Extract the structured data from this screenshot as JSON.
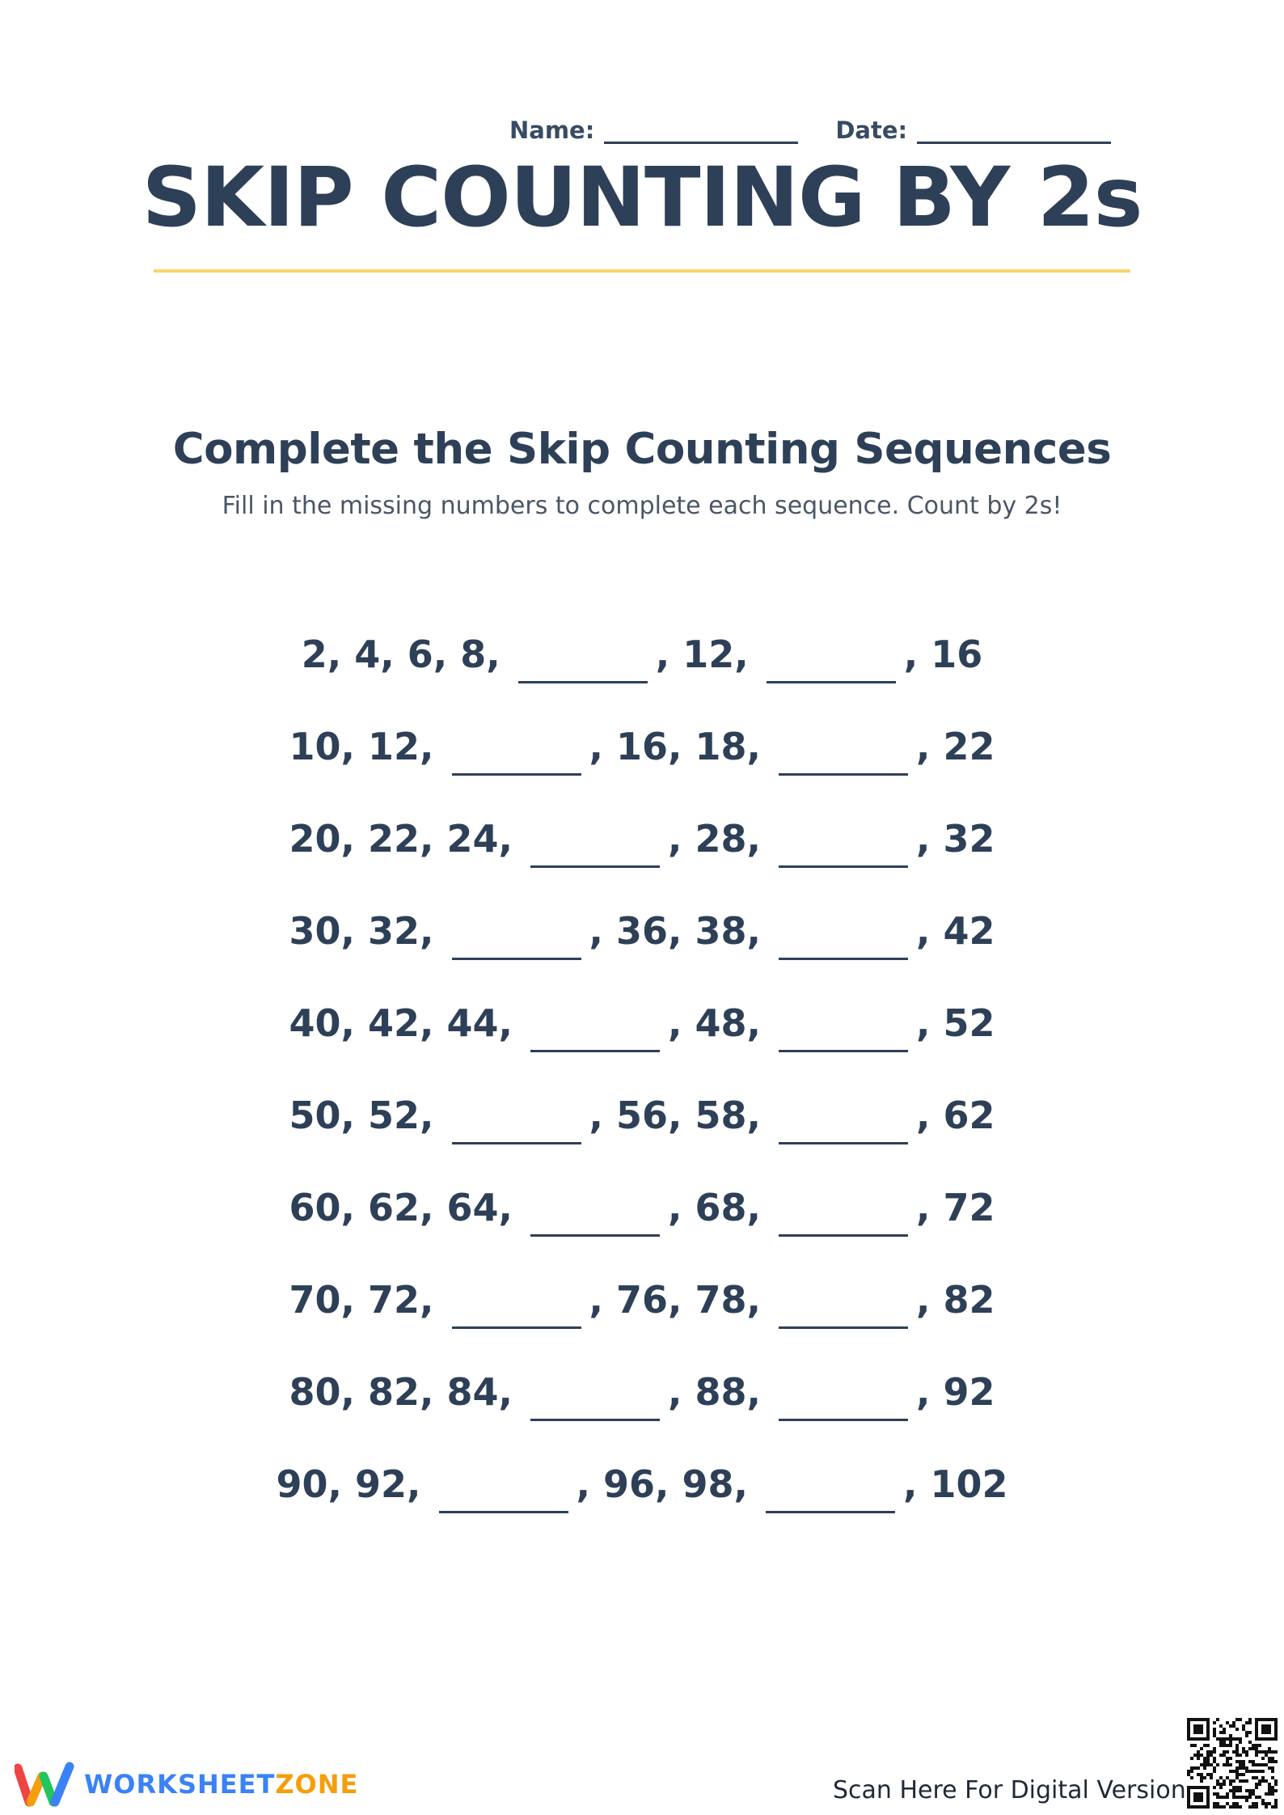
{
  "header": {
    "name_label": "Name:",
    "date_label": "Date:"
  },
  "title": "SKIP COUNTING BY 2s",
  "section": {
    "title": "Complete the Skip Counting Sequences",
    "instructions": "Fill in the missing numbers to complete each sequence. Count by 2s!"
  },
  "sequences": [
    {
      "a": "2, 4, 6, 8,",
      "b": ", 12,",
      "c": ", 16"
    },
    {
      "a": "10, 12,",
      "b": ", 16, 18,",
      "c": ", 22"
    },
    {
      "a": "20, 22, 24,",
      "b": ", 28,",
      "c": ", 32"
    },
    {
      "a": "30, 32,",
      "b": ", 36, 38,",
      "c": ", 42"
    },
    {
      "a": "40, 42, 44,",
      "b": ", 48,",
      "c": ", 52"
    },
    {
      "a": "50, 52,",
      "b": ", 56, 58,",
      "c": ", 62"
    },
    {
      "a": "60, 62, 64,",
      "b": ", 68,",
      "c": ", 72"
    },
    {
      "a": "70, 72,",
      "b": ", 76, 78,",
      "c": ", 82"
    },
    {
      "a": "80, 82, 84,",
      "b": ", 88,",
      "c": ", 92"
    },
    {
      "a": "90, 92,",
      "b": ", 96, 98,",
      "c": ", 102"
    }
  ],
  "footer": {
    "logo_part1": "WORKSHEET",
    "logo_part2": "ZONE",
    "scan_text": "Scan Here For Digital Version"
  },
  "icons": {
    "logo": "worksheetzone-w-logo-icon",
    "qr": "qr-code-icon"
  },
  "colors": {
    "text": "#2e4057",
    "rule": "#f9d46b",
    "logo_blue": "#3b82f6",
    "logo_orange": "#f59e0b"
  }
}
